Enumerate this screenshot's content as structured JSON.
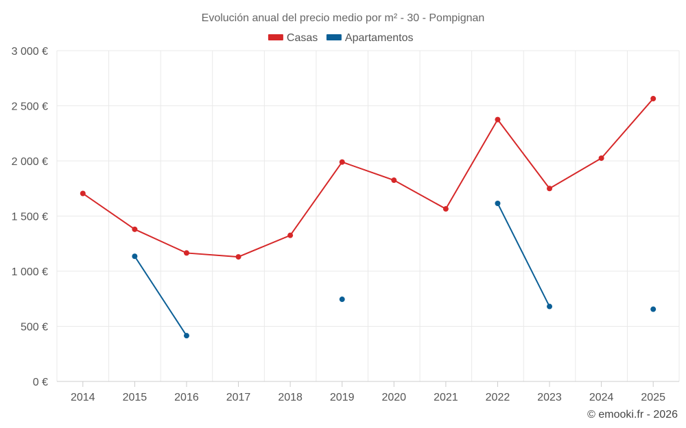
{
  "chart_data": {
    "type": "line",
    "title": "Evolución anual del precio medio por m² - 30 - Pompignan",
    "categories": [
      "2014",
      "2015",
      "2016",
      "2017",
      "2018",
      "2019",
      "2020",
      "2021",
      "2022",
      "2023",
      "2024",
      "2025"
    ],
    "series": [
      {
        "name": "Casas",
        "color": "#d62728",
        "values": [
          1705,
          1380,
          1165,
          1130,
          1325,
          1990,
          1825,
          1565,
          2375,
          1750,
          2025,
          2565
        ]
      },
      {
        "name": "Apartamentos",
        "color": "#0b5f96",
        "values": [
          null,
          1135,
          415,
          null,
          null,
          745,
          null,
          null,
          1615,
          680,
          null,
          655
        ]
      }
    ],
    "ylim": [
      0,
      3000
    ],
    "yticks": [
      0,
      500,
      1000,
      1500,
      2000,
      2500,
      3000
    ],
    "ytick_labels": [
      "0 €",
      "500 €",
      "1 000 €",
      "1 500 €",
      "2 000 €",
      "2 500 €",
      "3 000 €"
    ],
    "xlabel": "",
    "ylabel": "",
    "grid": true,
    "legend_position": "top-center"
  },
  "credit": "© emooki.fr - 2026"
}
